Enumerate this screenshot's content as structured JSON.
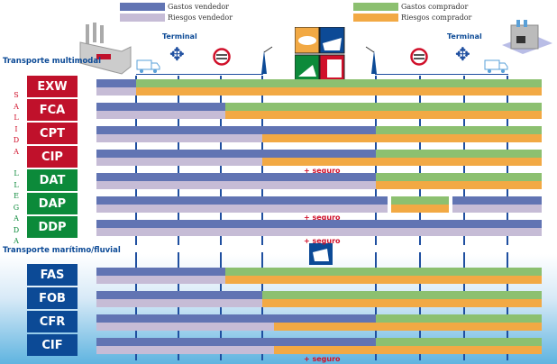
{
  "legend": {
    "seller_costs": {
      "label": "Gastos vendedor",
      "color": "#6174b3"
    },
    "seller_risks": {
      "label": "Riesgos vendedor",
      "color": "#c6bcd6"
    },
    "buyer_costs": {
      "label": "Gastos comprador",
      "color": "#8cc070"
    },
    "buyer_risks": {
      "label": "Riesgos comprador",
      "color": "#f2a944"
    }
  },
  "header": {
    "terminal_left": "Terminal",
    "terminal_right": "Terminal",
    "multimodal_label": "Transporte multimodal",
    "maritime_label": "Transporte marítimo/fluvial",
    "icons": [
      "factory-icon",
      "truck-icon",
      "terminal-arrows-icon",
      "customs-icon",
      "crane-icon",
      "transport-modes-icon",
      "crane-icon",
      "customs-icon",
      "terminal-arrows-icon",
      "truck-icon",
      "warehouse-icon"
    ]
  },
  "groups": {
    "salida": "SALIDA",
    "llegada": "LLEGADA"
  },
  "insurance_label": "+ seguro",
  "stages_note_hidden": null,
  "terms": [
    {
      "code": "EXW",
      "group": "salida",
      "color": "#c0112b",
      "cost_transfer": 1,
      "risk_transfer": 1
    },
    {
      "code": "FCA",
      "group": "salida",
      "color": "#c0112b",
      "cost_transfer": 3.1,
      "risk_transfer": 3.1
    },
    {
      "code": "CPT",
      "group": "salida",
      "color": "#c0112b",
      "cost_transfer": 5,
      "risk_transfer": 4
    },
    {
      "code": "CIP",
      "group": "salida",
      "color": "#c0112b",
      "cost_transfer": 5,
      "risk_transfer": 4,
      "insurance": true
    },
    {
      "code": "DAT",
      "group": "llegada",
      "color": "#0c8a3a",
      "cost_transfer": 5,
      "risk_transfer": 5
    },
    {
      "code": "DAP",
      "group": "llegada",
      "color": "#0c8a3a",
      "buyer_window": [
        5.35,
        6.65
      ],
      "insurance": true
    },
    {
      "code": "DDP",
      "group": "llegada",
      "color": "#0c8a3a",
      "cost_transfer": 9,
      "risk_transfer": 9,
      "insurance": true
    },
    {
      "code": "FAS",
      "group": "maritimo",
      "color": "#0c4a96",
      "cost_transfer": 3.1,
      "risk_transfer": 3.1
    },
    {
      "code": "FOB",
      "group": "maritimo",
      "color": "#0c4a96",
      "cost_transfer": 4,
      "risk_transfer": 4
    },
    {
      "code": "CFR",
      "group": "maritimo",
      "color": "#0c4a96",
      "cost_transfer": 5,
      "risk_transfer": 4.1
    },
    {
      "code": "CIF",
      "group": "maritimo",
      "color": "#0c4a96",
      "cost_transfer": 5,
      "risk_transfer": 4.1,
      "insurance": true
    }
  ]
}
